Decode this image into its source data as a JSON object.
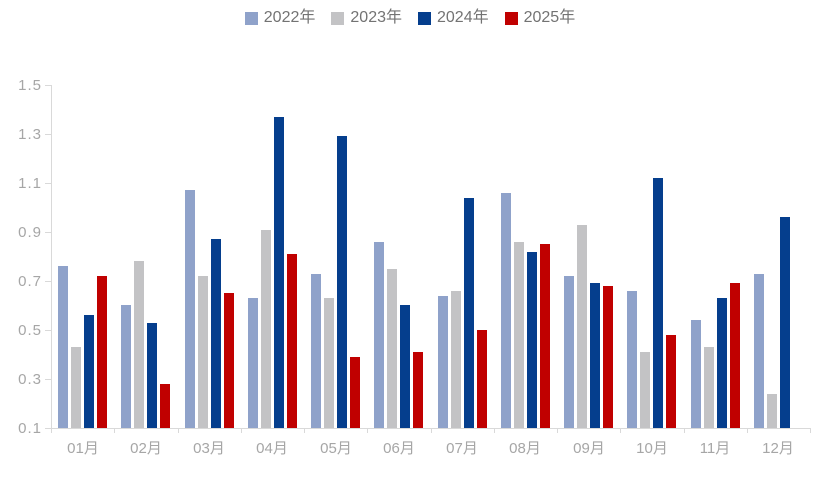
{
  "legend": {
    "items": [
      {
        "label": "2022年",
        "color": "#8fa2ca"
      },
      {
        "label": "2023年",
        "color": "#c3c3c5"
      },
      {
        "label": "2024年",
        "color": "#053e8d"
      },
      {
        "label": "2025年",
        "color": "#c00000"
      }
    ]
  },
  "axes": {
    "y_tick_labels": [
      "1.5",
      "1.3",
      "1.1",
      "0.9",
      "0.7",
      "0.5",
      "0.3",
      "0.1"
    ],
    "x_tick_labels": [
      "01月",
      "02月",
      "03月",
      "04月",
      "05月",
      "06月",
      "07月",
      "08月",
      "09月",
      "10月",
      "11月",
      "12月"
    ]
  },
  "chart_data": {
    "type": "bar",
    "title": "",
    "xlabel": "",
    "ylabel": "",
    "categories": [
      "01月",
      "02月",
      "03月",
      "04月",
      "05月",
      "06月",
      "07月",
      "08月",
      "09月",
      "10月",
      "11月",
      "12月"
    ],
    "series": [
      {
        "name": "2022年",
        "color": "#8fa2ca",
        "values": [
          0.76,
          0.6,
          1.07,
          0.63,
          0.73,
          0.86,
          0.64,
          1.06,
          0.72,
          0.66,
          0.54,
          0.73
        ]
      },
      {
        "name": "2023年",
        "color": "#c3c3c5",
        "values": [
          0.43,
          0.78,
          0.72,
          0.91,
          0.63,
          0.75,
          0.66,
          0.86,
          0.93,
          0.41,
          0.43,
          0.24
        ]
      },
      {
        "name": "2024年",
        "color": "#053e8d",
        "values": [
          0.56,
          0.53,
          0.87,
          1.37,
          1.29,
          0.6,
          1.04,
          0.82,
          0.69,
          1.12,
          0.63,
          0.96
        ]
      },
      {
        "name": "2025年",
        "color": "#c00000",
        "values": [
          0.72,
          0.28,
          0.65,
          0.81,
          0.39,
          0.41,
          0.5,
          0.85,
          0.68,
          0.48,
          0.69,
          null
        ]
      }
    ],
    "ylim": [
      0.1,
      1.5
    ],
    "y_tick_step": 0.2,
    "grid": false,
    "legend_position": "top"
  }
}
